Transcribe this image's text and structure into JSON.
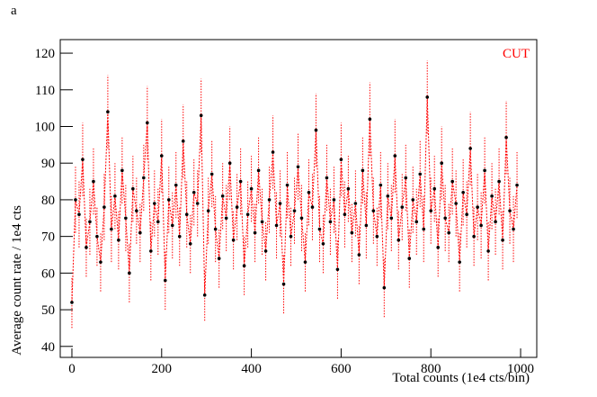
{
  "chart_data": {
    "type": "line",
    "panel_label": "a",
    "xlabel": "Total counts (1e4 cts/bin)",
    "ylabel": "Average count rate / 1e4  cts",
    "xlim": [
      -26,
      1036
    ],
    "ylim": [
      37,
      123.7
    ],
    "xticks": [
      0,
      200,
      400,
      600,
      800,
      1000
    ],
    "yticks": [
      40,
      50,
      60,
      70,
      80,
      90,
      100,
      110,
      120
    ],
    "x": [
      0,
      8,
      16,
      24,
      32,
      40,
      48,
      56,
      64,
      72,
      80,
      88,
      96,
      104,
      112,
      120,
      128,
      136,
      144,
      152,
      160,
      168,
      176,
      184,
      192,
      200,
      208,
      216,
      224,
      232,
      240,
      248,
      256,
      264,
      272,
      280,
      288,
      296,
      304,
      312,
      320,
      328,
      336,
      344,
      352,
      360,
      368,
      376,
      384,
      392,
      400,
      408,
      416,
      424,
      432,
      440,
      448,
      456,
      464,
      472,
      480,
      488,
      496,
      504,
      512,
      520,
      528,
      536,
      544,
      552,
      560,
      568,
      576,
      584,
      592,
      600,
      608,
      616,
      624,
      632,
      640,
      648,
      656,
      664,
      672,
      680,
      688,
      696,
      704,
      712,
      720,
      728,
      736,
      744,
      752,
      760,
      768,
      776,
      784,
      792,
      800,
      808,
      816,
      824,
      832,
      840,
      848,
      856,
      864,
      872,
      880,
      888,
      896,
      904,
      912,
      920,
      928,
      936,
      944,
      952,
      960,
      968,
      976,
      984,
      992
    ],
    "series": [
      {
        "name": "CUT",
        "color": "#ff0000",
        "marker_color": "#000000",
        "values": [
          52,
          80,
          76,
          91,
          67,
          74,
          85,
          70,
          63,
          78,
          104,
          72,
          81,
          69,
          88,
          75,
          60,
          83,
          77,
          71,
          86,
          101,
          66,
          79,
          74,
          92,
          58,
          80,
          73,
          84,
          70,
          96,
          76,
          68,
          82,
          79,
          103,
          54,
          77,
          87,
          72,
          64,
          81,
          75,
          90,
          69,
          78,
          85,
          62,
          76,
          83,
          71,
          88,
          74,
          66,
          80,
          93,
          73,
          79,
          57,
          84,
          70,
          77,
          89,
          75,
          63,
          82,
          78,
          99,
          72,
          68,
          86,
          74,
          80,
          61,
          91,
          76,
          83,
          71,
          79,
          65,
          88,
          73,
          102,
          77,
          70,
          84,
          56,
          81,
          75,
          92,
          69,
          78,
          86,
          64,
          80,
          74,
          87,
          72,
          108,
          77,
          83,
          67,
          90,
          75,
          71,
          85,
          79,
          63,
          82,
          76,
          94,
          70,
          78,
          73,
          88,
          66,
          81,
          74,
          85,
          69,
          97,
          77,
          72,
          84
        ],
        "errors": [
          7,
          9,
          9,
          10,
          8,
          9,
          9,
          8,
          8,
          9,
          10,
          9,
          9,
          8,
          9,
          9,
          8,
          9,
          9,
          8,
          9,
          10,
          8,
          9,
          9,
          10,
          8,
          9,
          9,
          9,
          8,
          10,
          9,
          8,
          9,
          9,
          10,
          7,
          9,
          9,
          9,
          8,
          9,
          9,
          10,
          8,
          9,
          9,
          8,
          9,
          9,
          8,
          9,
          9,
          8,
          9,
          10,
          9,
          9,
          8,
          9,
          8,
          9,
          9,
          9,
          8,
          9,
          9,
          10,
          9,
          8,
          9,
          9,
          9,
          8,
          10,
          9,
          9,
          8,
          9,
          8,
          9,
          9,
          10,
          9,
          8,
          9,
          8,
          9,
          9,
          10,
          8,
          9,
          9,
          8,
          9,
          9,
          9,
          9,
          10,
          9,
          9,
          8,
          10,
          9,
          8,
          9,
          9,
          8,
          9,
          9,
          10,
          8,
          9,
          9,
          9,
          8,
          9,
          9,
          9,
          8,
          10,
          9,
          9,
          9
        ]
      }
    ]
  }
}
